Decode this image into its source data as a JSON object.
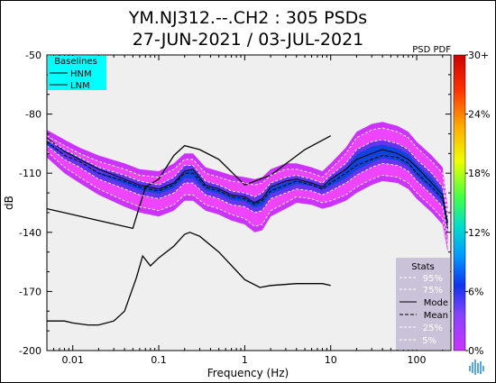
{
  "header": {
    "title_line1": "YM.NJ312.--.CH2 : 305 PSDs",
    "title_line2": "27-JUN-2021 / 03-JUL-2021",
    "corner_label": "PSD PDF"
  },
  "baselines": {
    "title": "Baselines",
    "items": [
      "HNM",
      "LNM"
    ]
  },
  "stats": {
    "title": "Stats",
    "items": [
      "95%",
      "75%",
      "Mode",
      "Mean",
      "25%",
      "5%"
    ]
  },
  "colorbar": {
    "tick_labels": [
      "30+",
      "24%",
      "18%",
      "12%",
      "6%",
      "0%"
    ],
    "colors": [
      "#cc33ff",
      "#8844ff",
      "#1133ee",
      "#0099ff",
      "#00ddcc",
      "#44ff44",
      "#eeff00",
      "#ffaa00",
      "#ff3300",
      "#cc0000"
    ]
  },
  "colors": {
    "plot_bg": "#efefef",
    "pdf_purple": "#cc33ff",
    "pdf_magenta": "#ee44ff",
    "legend_cyan": "#00ffff",
    "stats_box": "#c9c2d9"
  },
  "chart_data": {
    "type": "line",
    "title": "YM.NJ312.--.CH2 : 305 PSDs",
    "subtitle": "27-JUN-2021 / 03-JUL-2021",
    "xlabel": "Frequency (Hz)",
    "ylabel": "dB",
    "xscale": "log",
    "xlim": [
      0.005,
      250
    ],
    "ylim": [
      -200,
      -50
    ],
    "x_ticks": [
      0.01,
      0.1,
      1,
      10,
      100
    ],
    "x_tick_labels": [
      "0.01",
      "0.1",
      "1",
      "10",
      "100"
    ],
    "y_ticks": [
      -50,
      -80,
      -110,
      -140,
      -170,
      -200
    ],
    "y_tick_labels": [
      "-50",
      "-80",
      "-110",
      "-140",
      "-170",
      "-200"
    ],
    "grid": false,
    "series": [
      {
        "name": "HNM",
        "x": [
          0.005,
          0.01,
          0.02,
          0.05,
          0.07,
          0.1,
          0.15,
          0.2,
          0.3,
          0.5,
          1,
          2,
          5,
          10
        ],
        "y": [
          -128,
          -131,
          -134,
          -138,
          -117,
          -113,
          -101,
          -96,
          -98,
          -103,
          -116,
          -111,
          -98,
          -91
        ]
      },
      {
        "name": "LNM",
        "x": [
          0.005,
          0.008,
          0.01,
          0.015,
          0.02,
          0.03,
          0.04,
          0.055,
          0.065,
          0.08,
          0.1,
          0.15,
          0.2,
          0.23,
          0.3,
          0.5,
          1,
          1.5,
          2,
          4,
          8,
          10
        ],
        "y": [
          -185,
          -185,
          -186,
          -187,
          -187,
          -185,
          -180,
          -163,
          -152,
          -157,
          -153,
          -147,
          -141,
          -140,
          -142,
          -150,
          -164,
          -168,
          -167,
          -166,
          -166,
          -167
        ]
      },
      {
        "name": "Mode",
        "x": [
          0.005,
          0.008,
          0.012,
          0.02,
          0.04,
          0.06,
          0.1,
          0.15,
          0.2,
          0.25,
          0.35,
          0.5,
          0.7,
          1,
          1.3,
          1.6,
          2,
          3,
          4,
          6,
          8,
          10,
          15,
          20,
          30,
          40,
          60,
          80,
          100,
          150,
          200,
          230
        ],
        "y": [
          -92,
          -99,
          -103,
          -108,
          -113,
          -116,
          -118,
          -115,
          -109,
          -108,
          -116,
          -118,
          -121,
          -122,
          -125,
          -123,
          -117,
          -114,
          -113,
          -115,
          -117,
          -113,
          -108,
          -103,
          -100,
          -98,
          -100,
          -103,
          -107,
          -115,
          -121,
          -135
        ]
      },
      {
        "name": "Mean",
        "x": [
          0.005,
          0.008,
          0.012,
          0.02,
          0.04,
          0.06,
          0.1,
          0.15,
          0.2,
          0.25,
          0.35,
          0.5,
          0.7,
          1,
          1.3,
          1.6,
          2,
          3,
          4,
          6,
          8,
          10,
          15,
          20,
          30,
          40,
          60,
          80,
          100,
          150,
          200,
          230
        ],
        "y": [
          -94,
          -101,
          -104,
          -110,
          -114,
          -117,
          -119,
          -116,
          -110,
          -110,
          -117,
          -119,
          -122,
          -123,
          -126,
          -124,
          -119,
          -116,
          -114,
          -116,
          -118,
          -115,
          -110,
          -106,
          -103,
          -101,
          -102,
          -105,
          -110,
          -117,
          -123,
          -138
        ]
      },
      {
        "name": "95%",
        "x": [
          0.005,
          0.008,
          0.012,
          0.02,
          0.04,
          0.06,
          0.1,
          0.15,
          0.2,
          0.25,
          0.35,
          0.5,
          0.7,
          1,
          1.3,
          1.6,
          2,
          3,
          4,
          6,
          8,
          10,
          15,
          20,
          30,
          40,
          60,
          80,
          100,
          150,
          200,
          230
        ],
        "y": [
          -91,
          -96,
          -100,
          -104,
          -108,
          -111,
          -112,
          -108,
          -103,
          -103,
          -110,
          -112,
          -114,
          -115,
          -116,
          -115,
          -111,
          -108,
          -108,
          -110,
          -112,
          -108,
          -100,
          -92,
          -88,
          -87,
          -89,
          -92,
          -97,
          -104,
          -110,
          -130
        ]
      },
      {
        "name": "75%",
        "x": [
          0.005,
          0.008,
          0.012,
          0.02,
          0.04,
          0.06,
          0.1,
          0.15,
          0.2,
          0.25,
          0.35,
          0.5,
          0.7,
          1,
          1.3,
          1.6,
          2,
          3,
          4,
          6,
          8,
          10,
          15,
          20,
          30,
          40,
          60,
          80,
          100,
          150,
          200,
          230
        ],
        "y": [
          -93,
          -98,
          -102,
          -107,
          -111,
          -114,
          -116,
          -112,
          -106,
          -106,
          -114,
          -116,
          -119,
          -120,
          -122,
          -120,
          -115,
          -112,
          -111,
          -113,
          -115,
          -111,
          -105,
          -98,
          -94,
          -93,
          -95,
          -98,
          -103,
          -110,
          -117,
          -133
        ]
      },
      {
        "name": "25%",
        "x": [
          0.005,
          0.008,
          0.012,
          0.02,
          0.04,
          0.06,
          0.1,
          0.15,
          0.2,
          0.25,
          0.35,
          0.5,
          0.7,
          1,
          1.3,
          1.6,
          2,
          3,
          4,
          6,
          8,
          10,
          15,
          20,
          30,
          40,
          60,
          80,
          100,
          150,
          200,
          230
        ],
        "y": [
          -96,
          -103,
          -107,
          -113,
          -118,
          -121,
          -123,
          -120,
          -115,
          -115,
          -121,
          -123,
          -126,
          -127,
          -130,
          -129,
          -123,
          -120,
          -118,
          -119,
          -121,
          -119,
          -115,
          -111,
          -107,
          -105,
          -106,
          -109,
          -114,
          -121,
          -127,
          -141
        ]
      },
      {
        "name": "5%",
        "x": [
          0.005,
          0.008,
          0.012,
          0.02,
          0.04,
          0.06,
          0.1,
          0.15,
          0.2,
          0.25,
          0.35,
          0.5,
          0.7,
          1,
          1.3,
          1.6,
          2,
          3,
          4,
          6,
          8,
          10,
          15,
          20,
          30,
          40,
          60,
          80,
          100,
          150,
          200,
          230
        ],
        "y": [
          -99,
          -107,
          -112,
          -118,
          -124,
          -127,
          -129,
          -126,
          -121,
          -121,
          -126,
          -128,
          -131,
          -133,
          -137,
          -136,
          -129,
          -125,
          -122,
          -123,
          -125,
          -124,
          -121,
          -117,
          -113,
          -111,
          -112,
          -115,
          -120,
          -127,
          -133,
          -147
        ]
      }
    ]
  }
}
